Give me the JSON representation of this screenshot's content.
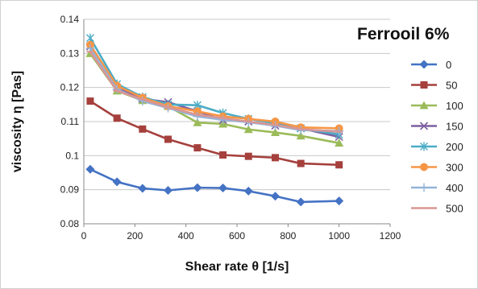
{
  "chart_data": {
    "type": "line",
    "title": "Ferrooil 6%",
    "xlabel": "Shear rate θ [1/s]",
    "ylabel": "viscosity η [Pas]",
    "xlim": [
      0,
      1200
    ],
    "ylim": [
      0.08,
      0.14
    ],
    "xticks": [
      0,
      200,
      400,
      600,
      800,
      1000,
      1200
    ],
    "xtick_labels": [
      "0",
      "200",
      "400",
      "600",
      "800",
      "1000",
      "1200"
    ],
    "yticks": [
      0.08,
      0.09,
      0.1,
      0.11,
      0.12,
      0.13,
      0.14
    ],
    "ytick_labels": [
      "0.08",
      "0.09",
      "0.1",
      "0.11",
      "0.12",
      "0.13",
      "0.14"
    ],
    "grid": "horizontal",
    "legend_position": "right",
    "x": [
      25,
      130,
      230,
      330,
      445,
      545,
      645,
      750,
      850,
      1000
    ],
    "series": [
      {
        "name": "0",
        "color": "#4472C4",
        "marker": "diamond",
        "values": [
          0.096,
          0.0923,
          0.0904,
          0.0898,
          0.0906,
          0.0905,
          0.0896,
          0.0881,
          0.0864,
          0.0867
        ]
      },
      {
        "name": "50",
        "color": "#A5403D",
        "marker": "square",
        "values": [
          0.116,
          0.111,
          0.1078,
          0.1048,
          0.1023,
          0.1002,
          0.0998,
          0.0994,
          0.0977,
          0.0973
        ]
      },
      {
        "name": "100",
        "color": "#9BBB59",
        "marker": "triangle",
        "values": [
          0.13,
          0.119,
          0.1162,
          0.1145,
          0.1097,
          0.1093,
          0.1077,
          0.1068,
          0.1058,
          0.1037
        ]
      },
      {
        "name": "150",
        "color": "#7E60A0",
        "marker": "x",
        "values": [
          0.132,
          0.12,
          0.1167,
          0.1157,
          0.113,
          0.1105,
          0.11,
          0.1088,
          0.108,
          0.1055
        ]
      },
      {
        "name": "200",
        "color": "#4BACC6",
        "marker": "star",
        "values": [
          0.1345,
          0.121,
          0.1172,
          0.115,
          0.1148,
          0.1125,
          0.1108,
          0.1095,
          0.108,
          0.1062
        ]
      },
      {
        "name": "300",
        "color": "#F79646",
        "marker": "circle",
        "values": [
          0.1325,
          0.1205,
          0.117,
          0.1145,
          0.113,
          0.1115,
          0.1108,
          0.11,
          0.1083,
          0.108
        ]
      },
      {
        "name": "400",
        "color": "#95B3D7",
        "marker": "plus",
        "values": [
          0.1315,
          0.1195,
          0.116,
          0.114,
          0.1115,
          0.1105,
          0.1098,
          0.1088,
          0.1075,
          0.1072
        ]
      },
      {
        "name": "500",
        "color": "#D99694",
        "marker": "dash",
        "values": [
          0.1305,
          0.119,
          0.1165,
          0.1142,
          0.112,
          0.111,
          0.11,
          0.109,
          0.1078,
          0.107
        ]
      }
    ]
  }
}
